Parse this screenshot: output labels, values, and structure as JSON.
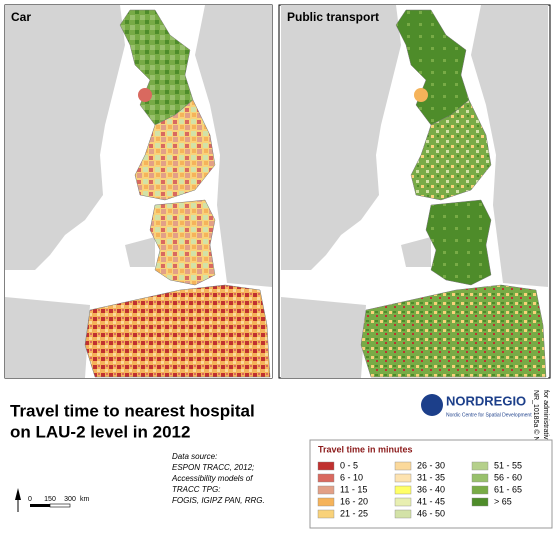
{
  "panels": [
    {
      "label": "Car"
    },
    {
      "label": "Public transport"
    }
  ],
  "title": [
    "Travel time to nearest hospital",
    "on LAU-2 level in 2012"
  ],
  "logo": {
    "name": "NORDREGIO",
    "tagline": "Nordic Centre for Spatial Development"
  },
  "credits": [
    "NR_10185a © Nordregio & NLS Finland",
    "for administrative boundaries"
  ],
  "data_source": [
    "Data source:",
    "ESPON TRACC, 2012;",
    "Accessibility models of",
    "TRACC TPG:",
    "FOGIS, IGIPZ PAN, RRG."
  ],
  "scale_bar": [
    "0",
    "150",
    "300",
    "km"
  ],
  "legend": {
    "title": "Travel time in minutes",
    "items": [
      {
        "label": "0 - 5",
        "color": "#c0312f"
      },
      {
        "label": "6 - 10",
        "color": "#d9695f"
      },
      {
        "label": "11 - 15",
        "color": "#e2a087"
      },
      {
        "label": "16 - 20",
        "color": "#f5b35a"
      },
      {
        "label": "21 - 25",
        "color": "#f9d27a"
      },
      {
        "label": "26 - 30",
        "color": "#fbd99b"
      },
      {
        "label": "31 - 35",
        "color": "#fde3b0"
      },
      {
        "label": "36 - 40",
        "color": "#ffff66"
      },
      {
        "label": "41 - 45",
        "color": "#e8efb1"
      },
      {
        "label": "46 - 50",
        "color": "#d3e2a7"
      },
      {
        "label": "51 - 55",
        "color": "#b5d08b"
      },
      {
        "label": "56 - 60",
        "color": "#98c06c"
      },
      {
        "label": "61 - 65",
        "color": "#78ab46"
      },
      {
        "label": "> 65",
        "color": "#4e8c2a"
      }
    ]
  }
}
